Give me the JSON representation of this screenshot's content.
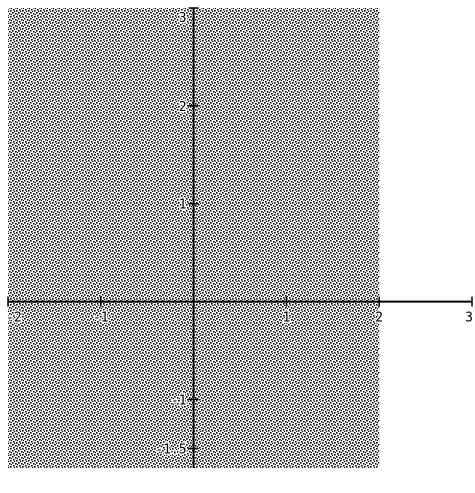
{
  "chart_data": {
    "type": "area",
    "title": "",
    "xlabel": "",
    "ylabel": "",
    "xlim": [
      -2,
      3
    ],
    "ylim": [
      -1.7,
      3
    ],
    "x_ticks": [
      {
        "value": -2,
        "label": "-2"
      },
      {
        "value": -1,
        "label": "-1"
      },
      {
        "value": 1,
        "label": "1"
      },
      {
        "value": 2,
        "label": "2"
      },
      {
        "value": 3,
        "label": "3"
      }
    ],
    "y_ticks": [
      {
        "value": 3,
        "label": "3"
      },
      {
        "value": 2,
        "label": "2"
      },
      {
        "value": 1,
        "label": "1"
      },
      {
        "value": -1,
        "label": "-1"
      },
      {
        "value": -1.5,
        "label": "-1.5"
      }
    ],
    "shaded_region": {
      "x_min": -2,
      "x_max": 2,
      "y_min": -1.7,
      "y_max": 3,
      "pattern": "stippled",
      "color": "#000000"
    },
    "grid": false,
    "legend": "none"
  }
}
